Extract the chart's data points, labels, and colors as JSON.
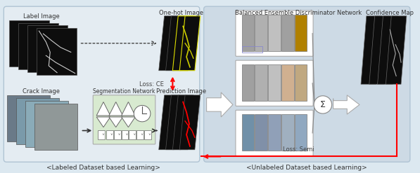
{
  "bg_color": "#dce8f0",
  "left_panel_color": "#e4ecf2",
  "right_panel_color": "#cddae5",
  "label_image_text": "Label Image",
  "onehot_image_text": "One-hot Image",
  "crack_image_text": "Crack Image",
  "seg_network_text": "Segmentation Network",
  "pred_image_text": "Prediction Image",
  "bedn_text": "Balanced Ensemble Discriminator Network",
  "confidence_text": "Confidence Map",
  "loss_ce_text": "Loss: CE",
  "loss_semi_text": "Loss: Semi",
  "bottom_left_text": "<Labeled Dataset based Learning>",
  "bottom_right_text": "<Unlabeled Dataset based Learning>"
}
